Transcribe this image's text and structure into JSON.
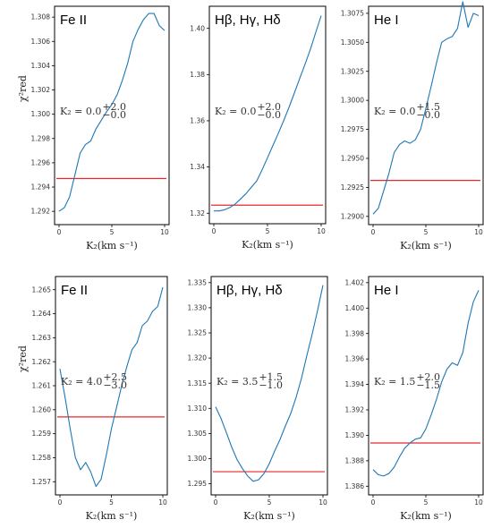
{
  "colors": {
    "curve": "#1f77b4",
    "threshold": "#e8282b",
    "frame": "#000000"
  },
  "chart_data": [
    {
      "type": "line",
      "title": "Fe II",
      "xlabel": "K₂(km s⁻¹)",
      "ylabel": "χ²red",
      "xlim": [
        0,
        10
      ],
      "ylim": [
        1.2912,
        1.3086
      ],
      "xticks": [
        0,
        5,
        10
      ],
      "yticks": [
        1.292,
        1.294,
        1.296,
        1.298,
        1.3,
        1.302,
        1.304,
        1.306,
        1.308
      ],
      "ytick_labels": [
        "1.292",
        "1.294",
        "1.296",
        "1.298",
        "1.300",
        "1.302",
        "1.304",
        "1.306",
        "1.308"
      ],
      "annotation": {
        "base": "K₂ = 0.0",
        "sup": "+2.0",
        "sub": "−0.0"
      },
      "threshold": 1.2947,
      "series": [
        {
          "x": [
            0,
            0.5,
            1,
            1.5,
            2,
            2.5,
            3,
            3.5,
            4,
            4.5,
            5,
            5.5,
            6,
            6.5,
            7,
            7.5,
            8,
            8.5,
            9,
            9.5,
            10
          ],
          "y": [
            1.292,
            1.2923,
            1.2932,
            1.295,
            1.2968,
            1.2975,
            1.2978,
            1.2988,
            1.2995,
            1.3002,
            1.3008,
            1.3016,
            1.3028,
            1.3042,
            1.306,
            1.307,
            1.3078,
            1.3083,
            1.3083,
            1.3073,
            1.3069
          ]
        }
      ]
    },
    {
      "type": "line",
      "title": "Hβ, Hγ, Hδ",
      "xlabel": "K₂(km s⁻¹)",
      "ylabel": "",
      "xlim": [
        0,
        10
      ],
      "ylim": [
        1.317,
        1.408
      ],
      "xticks": [
        0,
        5,
        10
      ],
      "yticks": [
        1.32,
        1.34,
        1.36,
        1.38,
        1.4
      ],
      "ytick_labels": [
        "1.32",
        "1.34",
        "1.36",
        "1.38",
        "1.40"
      ],
      "annotation": {
        "base": "K₂ = 0.0",
        "sup": "+2.0",
        "sub": "−0.0"
      },
      "threshold": 1.3235,
      "series": [
        {
          "x": [
            0,
            0.5,
            1,
            1.5,
            2,
            2.5,
            3,
            3.5,
            4,
            4.5,
            5,
            5.5,
            6,
            6.5,
            7,
            7.5,
            8,
            8.5,
            9,
            9.5,
            10
          ],
          "y": [
            1.321,
            1.321,
            1.3215,
            1.3225,
            1.324,
            1.3262,
            1.3285,
            1.3313,
            1.334,
            1.3388,
            1.344,
            1.3493,
            1.3545,
            1.36,
            1.3658,
            1.372,
            1.3783,
            1.3845,
            1.391,
            1.3983,
            1.4055
          ]
        }
      ]
    },
    {
      "type": "line",
      "title": "He I",
      "xlabel": "K₂(km s⁻¹)",
      "ylabel": "",
      "xlim": [
        0,
        10
      ],
      "ylim": [
        1.2896,
        1.3078
      ],
      "xticks": [
        0,
        5,
        10
      ],
      "yticks": [
        1.29,
        1.2925,
        1.295,
        1.2975,
        1.3,
        1.3025,
        1.305,
        1.3075
      ],
      "ytick_labels": [
        "1.2900",
        "1.2925",
        "1.2950",
        "1.2975",
        "1.3000",
        "1.3025",
        "1.3050",
        "1.3075"
      ],
      "annotation": {
        "base": "K₂ = 0.0",
        "sup": "+1.5",
        "sub": "−0.0"
      },
      "threshold": 1.2931,
      "series": [
        {
          "x": [
            0,
            0.5,
            1,
            1.5,
            2,
            2.5,
            3,
            3.5,
            4,
            4.5,
            5,
            5.5,
            6,
            6.5,
            7,
            7.5,
            8,
            8.5,
            9,
            9.5,
            10
          ],
          "y": [
            1.2902,
            1.2907,
            1.2922,
            1.2937,
            1.2955,
            1.2962,
            1.2965,
            1.2963,
            1.2966,
            1.2975,
            1.2993,
            1.3012,
            1.3032,
            1.305,
            1.3053,
            1.3055,
            1.3062,
            1.3085,
            1.3063,
            1.3075,
            1.3073
          ]
        }
      ]
    },
    {
      "type": "line",
      "title": "Fe II",
      "xlabel": "K₂(km s⁻¹)",
      "ylabel": "χ²red",
      "xlim": [
        0,
        10
      ],
      "ylim": [
        1.2566,
        1.2654
      ],
      "xticks": [
        0,
        5,
        10
      ],
      "yticks": [
        1.257,
        1.258,
        1.259,
        1.26,
        1.261,
        1.262,
        1.263,
        1.264,
        1.265
      ],
      "ytick_labels": [
        "1.257",
        "1.258",
        "1.259",
        "1.260",
        "1.261",
        "1.262",
        "1.263",
        "1.264",
        "1.265"
      ],
      "annotation": {
        "base": "K₂ = 4.0",
        "sup": "+2.5",
        "sub": "−3.0"
      },
      "threshold": 1.2597,
      "series": [
        {
          "x": [
            0,
            0.5,
            1,
            1.5,
            2,
            2.5,
            3,
            3.5,
            4,
            4.5,
            5,
            5.5,
            6,
            6.5,
            7,
            7.5,
            8,
            8.5,
            9,
            9.5,
            10
          ],
          "y": [
            1.2617,
            1.2605,
            1.2592,
            1.258,
            1.2575,
            1.2578,
            1.2574,
            1.2568,
            1.2571,
            1.2581,
            1.2592,
            1.2601,
            1.261,
            1.2618,
            1.2625,
            1.2628,
            1.2635,
            1.2637,
            1.2641,
            1.2643,
            1.2651
          ]
        }
      ]
    },
    {
      "type": "line",
      "title": "Hβ, Hγ, Hδ",
      "xlabel": "K₂(km s⁻¹)",
      "ylabel": "",
      "xlim": [
        0,
        10
      ],
      "ylim": [
        1.2935,
        1.3355
      ],
      "xticks": [
        0,
        5,
        10
      ],
      "yticks": [
        1.295,
        1.3,
        1.305,
        1.31,
        1.315,
        1.32,
        1.325,
        1.33,
        1.335
      ],
      "ytick_labels": [
        "1.295",
        "1.300",
        "1.305",
        "1.310",
        "1.315",
        "1.320",
        "1.325",
        "1.330",
        "1.335"
      ],
      "annotation": {
        "base": "K₂ = 3.5",
        "sup": "+1.5",
        "sub": "−1.0"
      },
      "threshold": 1.2974,
      "series": [
        {
          "x": [
            0,
            0.5,
            1,
            1.5,
            2,
            2.5,
            3,
            3.5,
            4,
            4.5,
            5,
            5.5,
            6,
            6.5,
            7,
            7.5,
            8,
            8.5,
            9,
            9.5,
            10
          ],
          "y": [
            1.3103,
            1.308,
            1.3052,
            1.3023,
            1.2998,
            1.298,
            1.2965,
            1.2955,
            1.2958,
            1.297,
            1.299,
            1.3015,
            1.3038,
            1.3065,
            1.309,
            1.3122,
            1.316,
            1.3205,
            1.3248,
            1.3295,
            1.3345
          ]
        }
      ]
    },
    {
      "type": "line",
      "title": "He I",
      "xlabel": "K₂(km s⁻¹)",
      "ylabel": "",
      "xlim": [
        0,
        10
      ],
      "ylim": [
        1.3856,
        1.4022
      ],
      "xticks": [
        0,
        5,
        10
      ],
      "yticks": [
        1.386,
        1.388,
        1.39,
        1.392,
        1.394,
        1.396,
        1.398,
        1.4,
        1.402
      ],
      "ytick_labels": [
        "1.386",
        "1.388",
        "1.390",
        "1.392",
        "1.394",
        "1.396",
        "1.398",
        "1.400",
        "1.402"
      ],
      "annotation": {
        "base": "K₂ = 1.5",
        "sup": "+2.0",
        "sub": "−1.5"
      },
      "threshold": 1.3894,
      "series": [
        {
          "x": [
            0,
            0.5,
            1,
            1.5,
            2,
            2.5,
            3,
            3.5,
            4,
            4.5,
            5,
            5.5,
            6,
            6.5,
            7,
            7.5,
            8,
            8.5,
            9,
            9.5,
            10
          ],
          "y": [
            1.3873,
            1.3869,
            1.3868,
            1.387,
            1.3875,
            1.3883,
            1.389,
            1.3894,
            1.3897,
            1.3898,
            1.3905,
            1.3916,
            1.3928,
            1.3942,
            1.3952,
            1.3957,
            1.3955,
            1.3965,
            1.3988,
            1.4005,
            1.4014
          ]
        }
      ]
    }
  ]
}
